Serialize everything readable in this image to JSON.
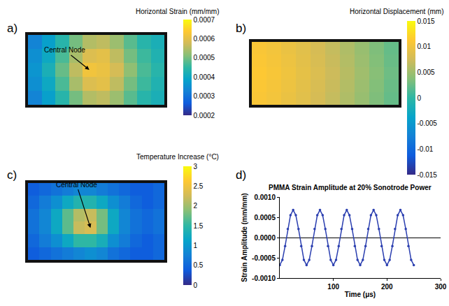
{
  "chart_data": [
    {
      "type": "heatmap",
      "label": "a)",
      "colorbar_title": "Horizontal Strain (mm/mm)",
      "annotations": [
        "Central Node"
      ],
      "tick_labels": false,
      "colorbar_range": [
        0.0002,
        0.0007
      ],
      "colorbar_ticks": [
        0.0002,
        0.0003,
        0.0004,
        0.0005,
        0.0006,
        0.0007
      ],
      "cells": [
        [
          0.00033,
          0.00038,
          0.00044,
          0.0005,
          0.00055,
          0.00056,
          0.00053,
          0.00048,
          0.00044,
          0.00042
        ],
        [
          0.00035,
          0.0004,
          0.00047,
          0.00054,
          0.00059,
          0.0006,
          0.00056,
          0.0005,
          0.00046,
          0.00043
        ],
        [
          0.00036,
          0.00042,
          0.00049,
          0.00056,
          0.00062,
          0.00061,
          0.00058,
          0.00052,
          0.00047,
          0.00044
        ],
        [
          0.00035,
          0.0004,
          0.00047,
          0.00054,
          0.00059,
          0.0006,
          0.00056,
          0.0005,
          0.00046,
          0.00043
        ],
        [
          0.00033,
          0.00038,
          0.00044,
          0.0005,
          0.00055,
          0.00056,
          0.00053,
          0.00048,
          0.00044,
          0.00042
        ]
      ]
    },
    {
      "type": "heatmap",
      "label": "b)",
      "colorbar_title": "Horizontal Displacement (mm)",
      "tick_labels": false,
      "colorbar_range": [
        -0.015,
        0.015
      ],
      "colorbar_ticks": [
        0.015,
        0.01,
        0.005,
        0,
        -0.005,
        -0.01,
        -0.015
      ],
      "cells": [
        [
          0.0108,
          0.0103,
          0.0096,
          0.0088,
          0.0079,
          0.0069,
          0.0058,
          0.0046,
          0.0034,
          0.0023
        ],
        [
          0.011,
          0.0105,
          0.0098,
          0.009,
          0.0081,
          0.0071,
          0.006,
          0.0048,
          0.0036,
          0.0025
        ],
        [
          0.0112,
          0.0107,
          0.01,
          0.0092,
          0.0083,
          0.0073,
          0.0062,
          0.005,
          0.0038,
          0.0027
        ],
        [
          0.011,
          0.0105,
          0.0098,
          0.009,
          0.0081,
          0.0071,
          0.006,
          0.0048,
          0.0036,
          0.0025
        ],
        [
          0.0108,
          0.0103,
          0.0096,
          0.0088,
          0.0079,
          0.0069,
          0.0058,
          0.0046,
          0.0034,
          0.0023
        ]
      ]
    },
    {
      "type": "heatmap",
      "label": "c)",
      "colorbar_title": "Temperature Increase (°C)",
      "annotations": [
        "Central Node"
      ],
      "tick_labels": false,
      "colorbar_range": [
        0,
        3
      ],
      "colorbar_ticks": [
        0,
        0.5,
        1,
        1.5,
        2,
        2.5,
        3
      ],
      "cells": [
        [
          0.4,
          0.5,
          0.6,
          0.7,
          0.8,
          0.8,
          0.7,
          0.6,
          0.5,
          0.4,
          0.4,
          0.5
        ],
        [
          0.5,
          0.7,
          0.9,
          1.2,
          1.4,
          1.4,
          1.2,
          0.9,
          0.7,
          0.5,
          0.4,
          0.5
        ],
        [
          0.6,
          0.8,
          1.2,
          1.7,
          2.1,
          2.2,
          1.8,
          1.2,
          0.8,
          0.6,
          0.5,
          0.6
        ],
        [
          0.6,
          0.8,
          1.2,
          1.7,
          2.2,
          2.3,
          1.8,
          1.2,
          0.8,
          0.6,
          0.5,
          0.6
        ],
        [
          0.5,
          0.7,
          0.9,
          1.2,
          1.5,
          1.5,
          1.3,
          0.9,
          0.7,
          0.5,
          0.4,
          0.5
        ],
        [
          0.4,
          0.5,
          0.6,
          0.7,
          0.8,
          0.9,
          0.8,
          0.6,
          0.5,
          0.4,
          0.4,
          0.5
        ]
      ]
    },
    {
      "type": "line",
      "label": "d)",
      "title": "PMMA Strain Amplitude at 20% Sonotrode Power",
      "x_label": "Time (μs)",
      "y_label": "Strain Amplitude (mm/mm)",
      "color": "#2b3fb0",
      "marker": "circle",
      "line_style": "solid",
      "grid": false,
      "xlim": [
        0,
        300
      ],
      "xticks": [
        100,
        200,
        300
      ],
      "ylim": [
        -0.001,
        0.001
      ],
      "yticks": [
        {
          "value": -0.001,
          "label": "-0.0010"
        },
        {
          "value": -0.0005,
          "label": "-0.0005"
        },
        {
          "value": 0,
          "label": "0.0000"
        },
        {
          "value": 0.0005,
          "label": "0.0005"
        },
        {
          "value": 0.001,
          "label": "0.0010"
        }
      ],
      "x": [
        0,
        5,
        10,
        15,
        20,
        25,
        30,
        35,
        40,
        45,
        50,
        55,
        60,
        65,
        70,
        75,
        80,
        85,
        90,
        95,
        100,
        105,
        110,
        115,
        120,
        125,
        130,
        135,
        140,
        145,
        150,
        155,
        160,
        165,
        170,
        175,
        180,
        185,
        190,
        195,
        200,
        205,
        210,
        215,
        220,
        225,
        230,
        235,
        240,
        245,
        250
      ],
      "values": [
        -0.00068,
        -0.00055,
        -0.00021,
        0.00021,
        0.00055,
        0.00068,
        0.00055,
        0.00021,
        -0.00021,
        -0.00055,
        -0.00068,
        -0.00055,
        -0.00021,
        0.00021,
        0.00055,
        0.00068,
        0.00055,
        0.00021,
        -0.00021,
        -0.00055,
        -0.00068,
        -0.00055,
        -0.00021,
        0.00021,
        0.00055,
        0.00068,
        0.00055,
        0.00021,
        -0.00021,
        -0.00055,
        -0.00068,
        -0.00055,
        -0.00021,
        0.00021,
        0.00055,
        0.00068,
        0.00055,
        0.00021,
        -0.00021,
        -0.00055,
        -0.00068,
        -0.00055,
        -0.00021,
        0.00021,
        0.00055,
        0.00068,
        0.00055,
        0.00021,
        -0.00021,
        -0.00055,
        -0.00068
      ]
    }
  ]
}
